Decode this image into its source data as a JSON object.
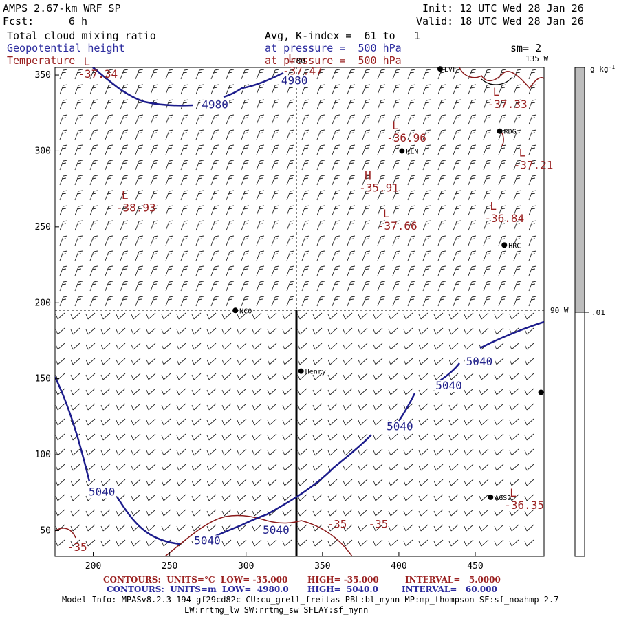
{
  "header": {
    "model": "AMPS 2.67-km WRF SP",
    "fcst_label": "Fcst:",
    "fcst_value": "6 h",
    "init": "Init: 12 UTC Wed 28 Jan 26",
    "valid": "Valid: 18 UTC Wed 28 Jan 26",
    "field1": "Total cloud mixing ratio",
    "field2": "Geopotential height",
    "field3": "Temperature",
    "avg": "Avg, K-index =  61 to   1",
    "press1": "at pressure =  500 hPa",
    "press2": "at pressure =  500 hPa",
    "sm": "sm= 2"
  },
  "map": {
    "x_ticks": [
      "200",
      "250",
      "300",
      "350",
      "400",
      "450"
    ],
    "y_ticks": [
      "50",
      "100",
      "150",
      "200",
      "250",
      "300",
      "350"
    ],
    "xlim": [
      175,
      495
    ],
    "ylim": [
      33,
      355
    ],
    "lon_labels": {
      "top_180": "180",
      "top_135w": "135 W",
      "right_90w": "90 W"
    },
    "lon_180_x": 335,
    "lat_90w_y": 195,
    "cross_section_x": 335,
    "cross_section_y": [
      33,
      195
    ],
    "temp_labels": [
      {
        "sym": "L",
        "val": "-37.34",
        "x": 190,
        "y": 350
      },
      {
        "sym": "L",
        "val": "-37.47",
        "x": 324,
        "y": 352
      },
      {
        "sym": "L",
        "val": "-37.33",
        "x": 458,
        "y": 330
      },
      {
        "sym": "L",
        "val": "-36.96",
        "x": 392,
        "y": 308
      },
      {
        "sym": "L",
        "val": "-37.21",
        "x": 475,
        "y": 290
      },
      {
        "sym": "H",
        "val": "-35.91",
        "x": 374,
        "y": 275
      },
      {
        "sym": "L",
        "val": "-38.93",
        "x": 215,
        "y": 262
      },
      {
        "sym": "L",
        "val": "-36.84",
        "x": 456,
        "y": 255
      },
      {
        "sym": "L",
        "val": "-37.66",
        "x": 386,
        "y": 250
      },
      {
        "sym": "L",
        "val": "-36.35",
        "x": 469,
        "y": 66
      }
    ],
    "temp_contour_labels": [
      {
        "val": "-35",
        "x": 353,
        "y": 54
      },
      {
        "val": "-35",
        "x": 380,
        "y": 54
      },
      {
        "val": "-35",
        "x": 183,
        "y": 39
      }
    ],
    "height_labels": [
      {
        "val": "4980",
        "x": 323,
        "y": 344
      },
      {
        "val": "4980",
        "x": 271,
        "y": 328
      },
      {
        "val": "5040",
        "x": 444,
        "y": 159
      },
      {
        "val": "5040",
        "x": 424,
        "y": 143
      },
      {
        "val": "5040",
        "x": 392,
        "y": 116
      },
      {
        "val": "5040",
        "x": 197,
        "y": 73
      },
      {
        "val": "5040",
        "x": 311,
        "y": 48
      },
      {
        "val": "5040",
        "x": 266,
        "y": 41
      }
    ],
    "stations": [
      {
        "name": "LVF",
        "x": 427,
        "y": 354
      },
      {
        "name": "RDG",
        "x": 466,
        "y": 313
      },
      {
        "name": "KLN",
        "x": 402,
        "y": 300
      },
      {
        "name": "HRC",
        "x": 469,
        "y": 238
      },
      {
        "name": "NCO",
        "x": 293,
        "y": 195
      },
      {
        "name": "Henry",
        "x": 336,
        "y": 155
      },
      {
        "name": "AGS2",
        "x": 460,
        "y": 72
      },
      {
        "name": "",
        "x": 493,
        "y": 141
      }
    ]
  },
  "colorbar": {
    "unit": "g kg",
    "unit_exp": "-1",
    "tick": ".01"
  },
  "footer": {
    "line1_label": "CONTOURS:  UNITS=°C  LOW= -35.000",
    "line1_high": "HIGH= -35.000",
    "line1_int": "INTERVAL=   5.0000",
    "line2_label": "CONTOURS:  UNITS=m  LOW=  4980.0",
    "line2_high": "HIGH=  5040.0",
    "line2_int": "INTERVAL=   60.000",
    "model_info": "Model Info: MPASv8.2.3-194-gf29cd82c CU:cu_grell_freitas PBL:bl_mynn MP:mp_thompson SF:sf_noahmp 2.7",
    "model_info2": "LW:rrtmg_lw SW:rrtmg_sw SFLAY:sf_mynn"
  }
}
